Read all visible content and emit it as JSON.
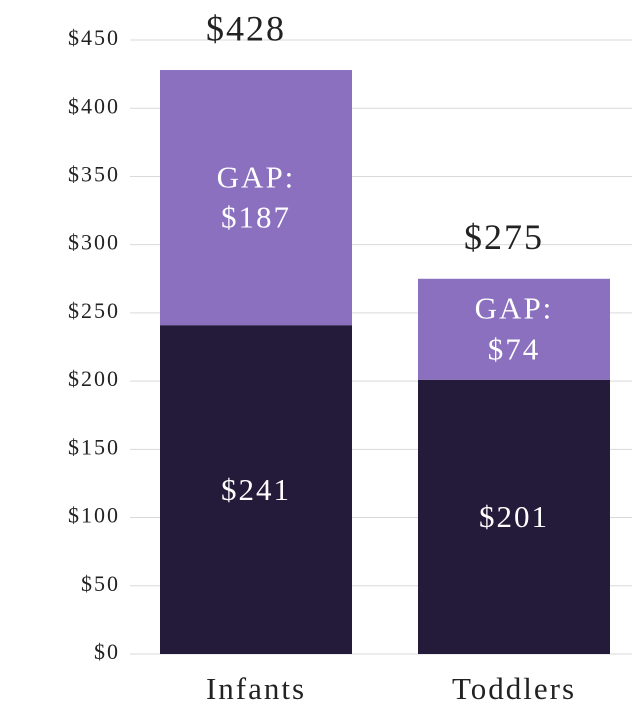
{
  "chart_data": {
    "type": "stacked_bar",
    "categories": [
      "Infants",
      "Toddlers"
    ],
    "series": [
      {
        "color": "#241a3a",
        "values": [
          241,
          201
        ],
        "value_labels": [
          "$241",
          "$201"
        ]
      },
      {
        "color": "#8a70bf",
        "values": [
          187,
          74
        ],
        "value_labels": [
          "GAP: $187",
          "GAP: $74"
        ]
      }
    ],
    "totals": [
      428,
      275
    ],
    "total_labels": [
      "$428",
      "$275"
    ],
    "ylim": [
      0,
      450
    ],
    "yticks": [
      {
        "value": 0,
        "label": "$0"
      },
      {
        "value": 50,
        "label": "$50"
      },
      {
        "value": 100,
        "label": "$100"
      },
      {
        "value": 150,
        "label": "$150"
      },
      {
        "value": 200,
        "label": "$200"
      },
      {
        "value": 250,
        "label": "$250"
      },
      {
        "value": 300,
        "label": "$300"
      },
      {
        "value": 350,
        "label": "$350"
      },
      {
        "value": 400,
        "label": "$400"
      },
      {
        "value": 450,
        "label": "$450"
      }
    ],
    "grid": true
  }
}
